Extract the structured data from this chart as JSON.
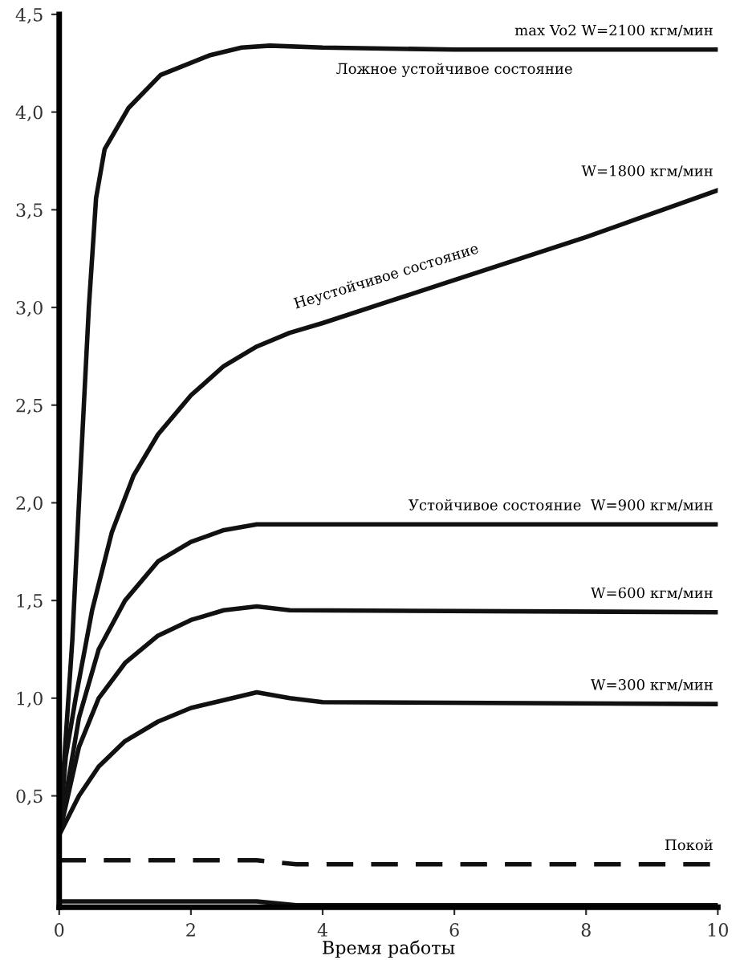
{
  "chart_data": {
    "type": "line",
    "xlabel": "Время работы",
    "xlim": [
      0,
      10
    ],
    "xticks": [
      0,
      2,
      4,
      6,
      8,
      10
    ],
    "ylim": [
      -0.07,
      4.5
    ],
    "yticks": [
      {
        "value": 0.5,
        "label": "0,5"
      },
      {
        "value": 1.0,
        "label": "1,0"
      },
      {
        "value": 1.5,
        "label": "1,5"
      },
      {
        "value": 2.0,
        "label": "2,0"
      },
      {
        "value": 2.5,
        "label": "2,5"
      },
      {
        "value": 3.0,
        "label": "3,0"
      },
      {
        "value": 3.5,
        "label": "3,5"
      },
      {
        "value": 4.0,
        "label": "4,0"
      },
      {
        "value": 4.5,
        "label": "4,5"
      }
    ],
    "grid": false,
    "legend": false,
    "marker": "none",
    "series": [
      {
        "name": "max Vo2 W=2100 кгм/мин",
        "color": "#111111",
        "line_style": "solid",
        "x": [
          0,
          0.2,
          0.32,
          0.45,
          0.56,
          0.69,
          1.05,
          1.54,
          2.28,
          2.77,
          3.2,
          4,
          6,
          8,
          10
        ],
        "values": [
          0.3,
          1.3,
          2.14,
          3.0,
          3.56,
          3.81,
          4.02,
          4.19,
          4.29,
          4.33,
          4.34,
          4.33,
          4.32,
          4.32,
          4.32
        ]
      },
      {
        "name": "W=1800 кгм/мин",
        "color": "#111111",
        "line_style": "solid",
        "x": [
          0,
          0.1,
          0.25,
          0.5,
          0.8,
          1.13,
          1.5,
          2,
          2.5,
          3,
          3.5,
          4,
          5,
          6,
          7,
          8,
          9,
          10
        ],
        "values": [
          0.3,
          0.7,
          1.0,
          1.45,
          1.85,
          2.14,
          2.35,
          2.55,
          2.7,
          2.8,
          2.87,
          2.92,
          3.03,
          3.14,
          3.25,
          3.36,
          3.48,
          3.6
        ]
      },
      {
        "name": "Устойчивое состояние  W=900 кгм/мин",
        "color": "#111111",
        "line_style": "solid",
        "x": [
          0,
          0.3,
          0.6,
          1,
          1.5,
          2,
          2.5,
          3,
          10
        ],
        "values": [
          0.3,
          0.9,
          1.25,
          1.5,
          1.7,
          1.8,
          1.86,
          1.89,
          1.89
        ]
      },
      {
        "name": "W=600 кгм/мин",
        "color": "#111111",
        "line_style": "solid",
        "x": [
          0,
          0.3,
          0.6,
          1,
          1.5,
          2,
          2.5,
          3,
          3.5,
          10
        ],
        "values": [
          0.3,
          0.75,
          1.0,
          1.18,
          1.32,
          1.4,
          1.45,
          1.47,
          1.45,
          1.44
        ]
      },
      {
        "name": "W=300 кгм/мин",
        "color": "#111111",
        "line_style": "solid",
        "x": [
          0,
          0.3,
          0.6,
          1,
          1.5,
          2,
          2.5,
          3,
          3.5,
          4,
          10
        ],
        "values": [
          0.3,
          0.5,
          0.65,
          0.78,
          0.88,
          0.95,
          0.99,
          1.03,
          1.0,
          0.98,
          0.97
        ]
      },
      {
        "name": "Покой",
        "color": "#111111",
        "line_style": "dashed",
        "x": [
          0,
          3,
          3.6,
          10
        ],
        "values": [
          0.17,
          0.17,
          0.15,
          0.15
        ]
      },
      {
        "color": "#111111",
        "line_style": "solid",
        "x": [
          0,
          3,
          3.6,
          10
        ],
        "values": [
          -0.04,
          -0.04,
          -0.06,
          -0.06
        ]
      }
    ],
    "annotations": [
      {
        "text": "Ложное устойчивое состояние",
        "x": 6,
        "y": 4.32
      },
      {
        "text": "Неустойчивое состояние",
        "x": 5,
        "y": 3.03
      }
    ]
  }
}
